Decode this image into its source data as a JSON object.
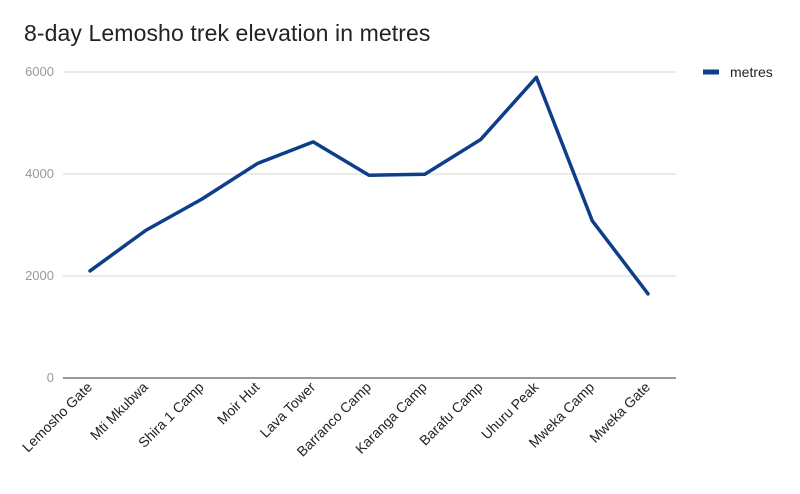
{
  "chart_data": {
    "type": "line",
    "title": "8-day Lemosho trek elevation in metres",
    "xlabel": "",
    "ylabel": "",
    "categories": [
      "Lemosho Gate",
      "Mti Mkubwa",
      "Shira 1 Camp",
      "Moir Hut",
      "Lava Tower",
      "Barranco Camp",
      "Karanga Camp",
      "Barafu Camp",
      "Uhuru Peak",
      "Mweka Camp",
      "Mweka Gate"
    ],
    "series": [
      {
        "name": "metres",
        "values": [
          2100,
          2895,
          3505,
          4205,
          4630,
          3975,
          3995,
          4675,
          5895,
          3085,
          1650
        ],
        "color": "#0e3d8a"
      }
    ],
    "ylim": [
      0,
      6000
    ],
    "yticks": [
      0,
      2000,
      4000,
      6000
    ],
    "grid": true,
    "legend": "top-right"
  }
}
